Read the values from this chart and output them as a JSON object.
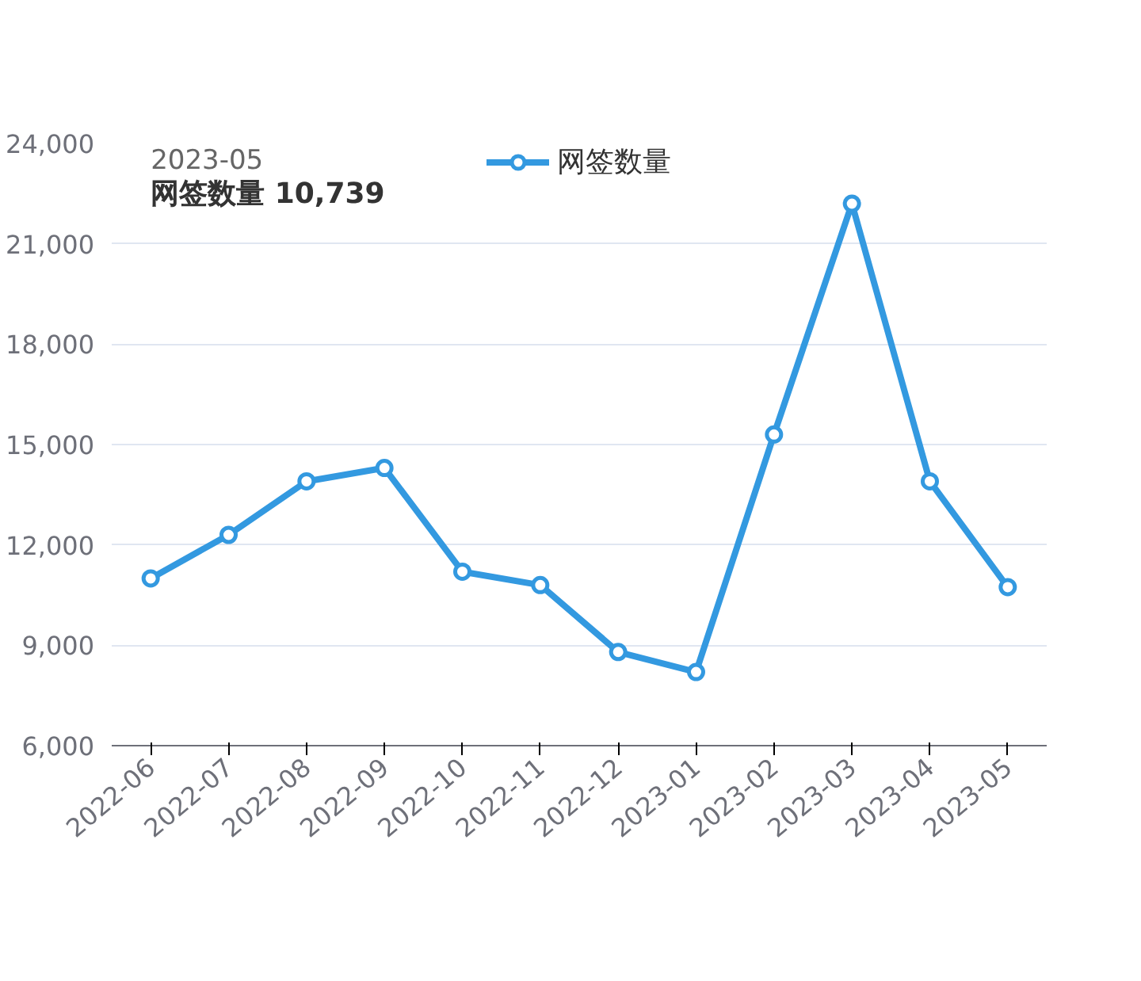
{
  "chart_data": {
    "type": "line",
    "categories": [
      "2022-06",
      "2022-07",
      "2022-08",
      "2022-09",
      "2022-10",
      "2022-11",
      "2022-12",
      "2023-01",
      "2023-02",
      "2023-03",
      "2023-04",
      "2023-05"
    ],
    "series": [
      {
        "name": "网签数量",
        "color": "#3399e0",
        "values": [
          11000,
          12300,
          13900,
          14300,
          11200,
          10800,
          8800,
          8200,
          15300,
          22200,
          13900,
          10739
        ]
      }
    ],
    "ylim": [
      6000,
      24000
    ],
    "yticks": [
      {
        "value": 6000,
        "label": "6,000"
      },
      {
        "value": 9000,
        "label": "9,000"
      },
      {
        "value": 12000,
        "label": "12,000"
      },
      {
        "value": 15000,
        "label": "15,000"
      },
      {
        "value": 18000,
        "label": "18,000"
      },
      {
        "value": 21000,
        "label": "21,000"
      },
      {
        "value": 24000,
        "label": "24,000"
      }
    ],
    "grid": "y",
    "legend": "top",
    "marker": "circle",
    "line_style": "solid",
    "annotations": [
      "2023-05",
      "网签数量  10,739"
    ]
  }
}
